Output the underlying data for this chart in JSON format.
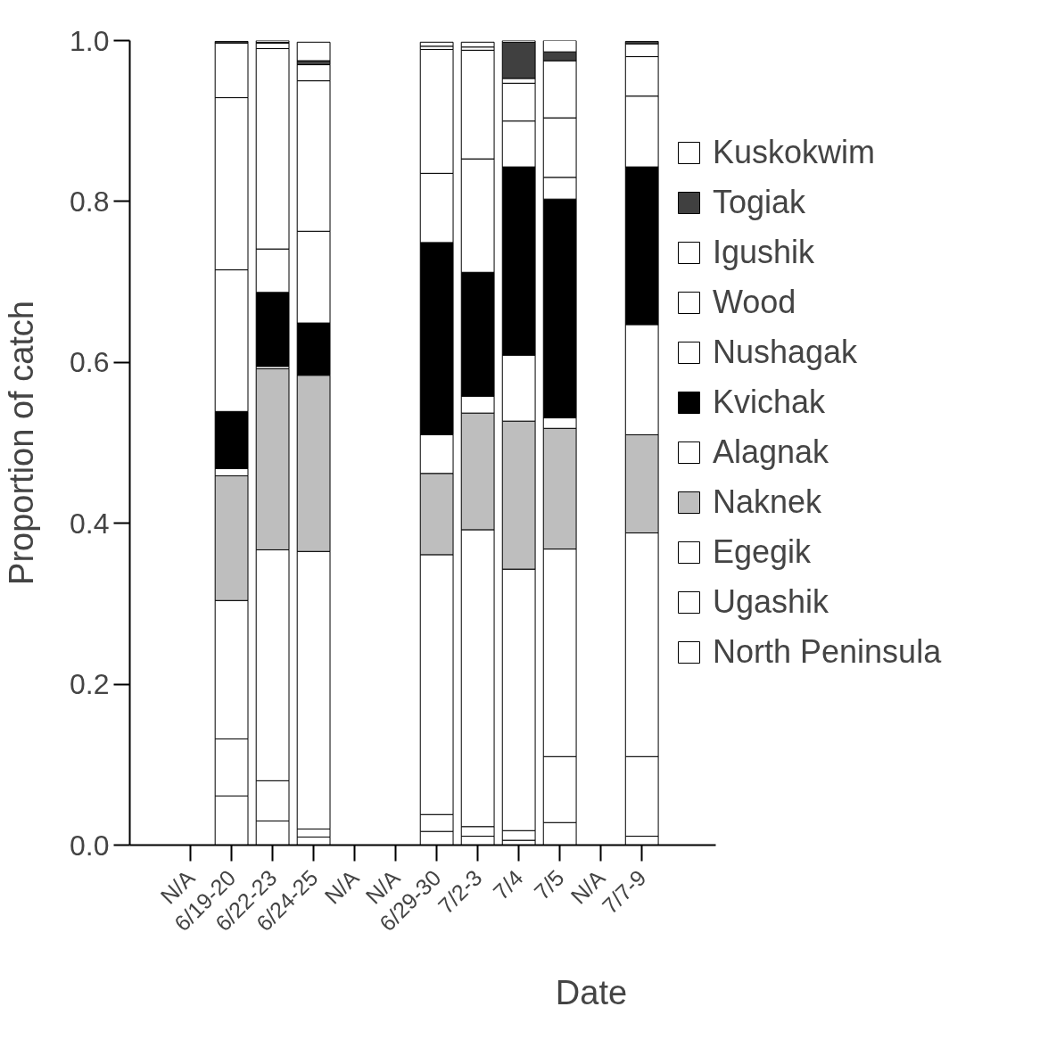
{
  "chart_data": {
    "type": "bar",
    "stacked": true,
    "xlabel": "Date",
    "ylabel": "Proportion of catch",
    "categories": [
      "N/A",
      "6/19-20",
      "6/22-23",
      "6/24-25",
      "N/A",
      "N/A",
      "6/29-30",
      "7/2-3",
      "7/4",
      "7/5",
      "N/A",
      "7/7-9"
    ],
    "ylim": [
      0,
      1
    ],
    "yticks": [
      {
        "value": 0,
        "label": "0.0"
      },
      {
        "value": 0.2,
        "label": "0.2"
      },
      {
        "value": 0.4,
        "label": "0.4"
      },
      {
        "value": 0.6,
        "label": "0.6"
      },
      {
        "value": 0.8,
        "label": "0.8"
      },
      {
        "value": 1,
        "label": "1.0"
      }
    ],
    "grid": false,
    "legend": "right",
    "series": [
      {
        "name": "North Peninsula",
        "color": "#ffffff",
        "values": [
          null,
          0.061,
          0.03,
          0.01,
          null,
          null,
          0.017,
          0.011,
          0.006,
          0.028,
          null,
          0.011
        ]
      },
      {
        "name": "Ugashik",
        "color": "#ffffff",
        "values": [
          null,
          0.071,
          0.05,
          0.01,
          null,
          null,
          0.021,
          0.012,
          0.012,
          0.082,
          null,
          0.099
        ]
      },
      {
        "name": "Egegik",
        "color": "#ffffff",
        "values": [
          null,
          0.172,
          0.287,
          0.345,
          null,
          null,
          0.323,
          0.369,
          0.325,
          0.258,
          null,
          0.278
        ]
      },
      {
        "name": "Naknek",
        "color": "#bebebe",
        "values": [
          null,
          0.155,
          0.225,
          0.219,
          null,
          null,
          0.101,
          0.145,
          0.184,
          0.15,
          null,
          0.122
        ]
      },
      {
        "name": "Alagnak",
        "color": "#ffffff",
        "values": [
          null,
          0.009,
          0.003,
          null,
          null,
          null,
          0.048,
          0.021,
          0.082,
          0.013,
          null,
          0.137
        ]
      },
      {
        "name": "Kvichak",
        "color": "#000000",
        "values": [
          null,
          0.071,
          0.092,
          0.065,
          null,
          null,
          0.239,
          0.154,
          0.234,
          0.272,
          null,
          0.196
        ]
      },
      {
        "name": "Nushagak",
        "color": "#ffffff",
        "values": [
          null,
          0.176,
          0.054,
          0.114,
          null,
          null,
          0.086,
          0.141,
          0.057,
          0.027,
          null,
          0.088
        ]
      },
      {
        "name": "Wood",
        "color": "#ffffff",
        "values": [
          null,
          0.214,
          0.249,
          0.187,
          null,
          null,
          0.154,
          0.135,
          0.047,
          0.074,
          null,
          0.049
        ]
      },
      {
        "name": "Igushik",
        "color": "#ffffff",
        "values": [
          null,
          0.068,
          0.007,
          0.02,
          null,
          null,
          0.004,
          0.004,
          0.006,
          0.071,
          null,
          0.016
        ]
      },
      {
        "name": "Togiak",
        "color": "#404040",
        "values": [
          null,
          0.002,
          0.001,
          0.005,
          null,
          null,
          null,
          null,
          0.045,
          0.011,
          null,
          0.003
        ]
      },
      {
        "name": "Kuskokwim",
        "color": "#ffffff",
        "values": [
          null,
          null,
          0.002,
          0.023,
          null,
          null,
          0.005,
          0.006,
          0.002,
          0.014,
          null,
          null
        ]
      }
    ]
  }
}
